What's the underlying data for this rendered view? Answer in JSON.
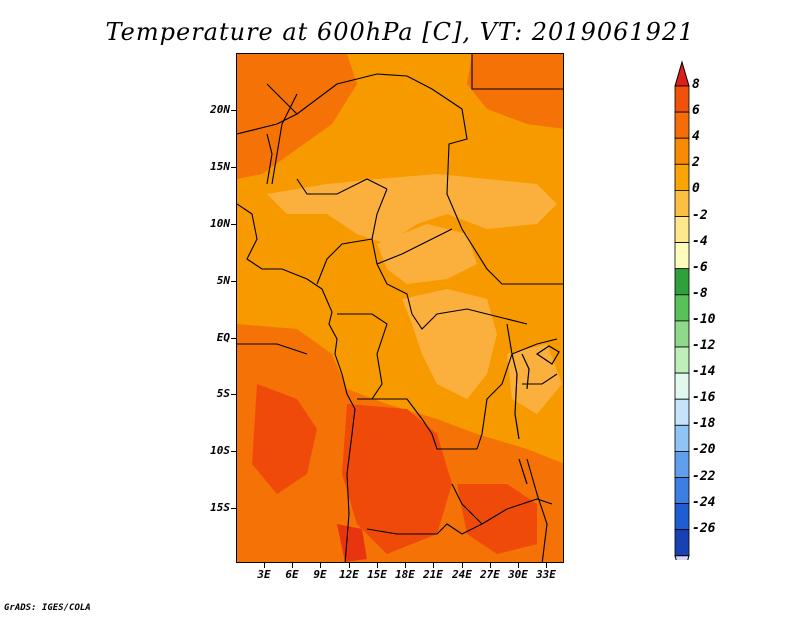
{
  "title": "Temperature at 600hPa [C], VT: 2019061921",
  "credit": "GrADS: IGES/COLA",
  "lat_labels": [
    "20N",
    "15N",
    "10N",
    "5N",
    "EQ",
    "5S",
    "10S",
    "15S"
  ],
  "lon_labels": [
    "3E",
    "6E",
    "9E",
    "12E",
    "15E",
    "18E",
    "21E",
    "24E",
    "27E",
    "30E",
    "33E"
  ],
  "colorbar": {
    "labels": [
      "8",
      "6",
      "4",
      "2",
      "0",
      "-2",
      "-4",
      "-6",
      "-8",
      "-10",
      "-12",
      "-14",
      "-16",
      "-18",
      "-20",
      "-22",
      "-24",
      "-26"
    ],
    "colors": [
      "#e8350f",
      "#f1520a",
      "#f56d06",
      "#f78c02",
      "#fba505",
      "#fbbf42",
      "#fde88c",
      "#fcfcbc",
      "#2ea03c",
      "#57c257",
      "#8fd98b",
      "#bfefb9",
      "#e1f8ef",
      "#c5e3fb",
      "#8fc4f5",
      "#5f9fee",
      "#3b7fe3",
      "#1f5ed1",
      "#1841b4",
      "#0c138a"
    ],
    "top_arrow_color": "#dd1f19",
    "bottom_arrow_color": "#dcd6f5"
  },
  "map_colors": {
    "band_2_4": "#f79a00",
    "band_0_2": "#fbb03e",
    "band_4_6": "#f57206",
    "band_6_8": "#f04a0a",
    "band_gt8": "#e8350f"
  }
}
